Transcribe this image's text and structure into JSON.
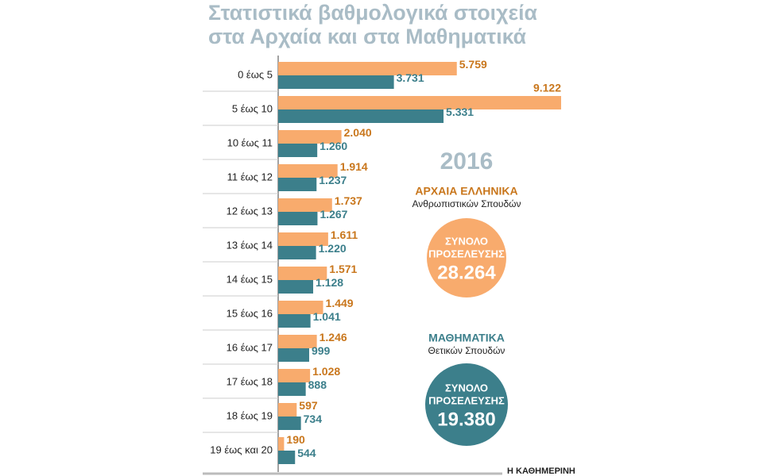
{
  "chart_data": {
    "type": "bar",
    "orientation": "horizontal",
    "title_lines": [
      "Στατιστικά βαθμολογικά στοιχεία",
      "στα Αρχαία και στα Μαθηματικά"
    ],
    "year": "2016",
    "categories": [
      "0 έως 5",
      "5 έως 10",
      "10 έως 11",
      "11 έως 12",
      "12 έως 13",
      "13 έως 14",
      "14 έως 15",
      "15 έως 16",
      "16 έως 17",
      "17 έως 18",
      "18 έως 19",
      "19 έως και 20"
    ],
    "series": [
      {
        "name": "ΑΡΧΑΙΑ ΕΛΛΗΝΙΚΑ",
        "description": "Ανθρωπιστικών Σπουδών",
        "color": "#f8ab6d",
        "label_color": "#c9771d",
        "values": [
          5759,
          9122,
          2040,
          1914,
          1737,
          1611,
          1571,
          1449,
          1246,
          1028,
          597,
          190
        ],
        "value_labels": [
          "5.759",
          "9.122",
          "2.040",
          "1.914",
          "1.737",
          "1.611",
          "1.571",
          "1.449",
          "1.246",
          "1.028",
          "597",
          "190"
        ],
        "total_title": [
          "ΣΥΝΟΛΟ",
          "ΠΡΟΣΕΛΕΥΣΗΣ"
        ],
        "total": {
          "value": 28264,
          "label": "28.264"
        }
      },
      {
        "name": "ΜΑΘΗΜΑΤΙΚΑ",
        "description": "Θετικών Σπουδών",
        "color": "#3c7f8b",
        "label_color": "#3c7f8b",
        "values": [
          3731,
          5331,
          1260,
          1237,
          1267,
          1220,
          1128,
          1041,
          999,
          888,
          734,
          544
        ],
        "value_labels": [
          "3.731",
          "5.331",
          "1.260",
          "1.237",
          "1.267",
          "1.220",
          "1.128",
          "1.041",
          "999",
          "888",
          "734",
          "544"
        ],
        "total_title": [
          "ΣΥΝΟΛΟ",
          "ΠΡΟΣΕΛΕΥΣΗΣ"
        ],
        "total": {
          "value": 19380,
          "label": "19.380"
        }
      }
    ],
    "source": "Η ΚΑΘΗΜΕΡΙΝΗ"
  }
}
